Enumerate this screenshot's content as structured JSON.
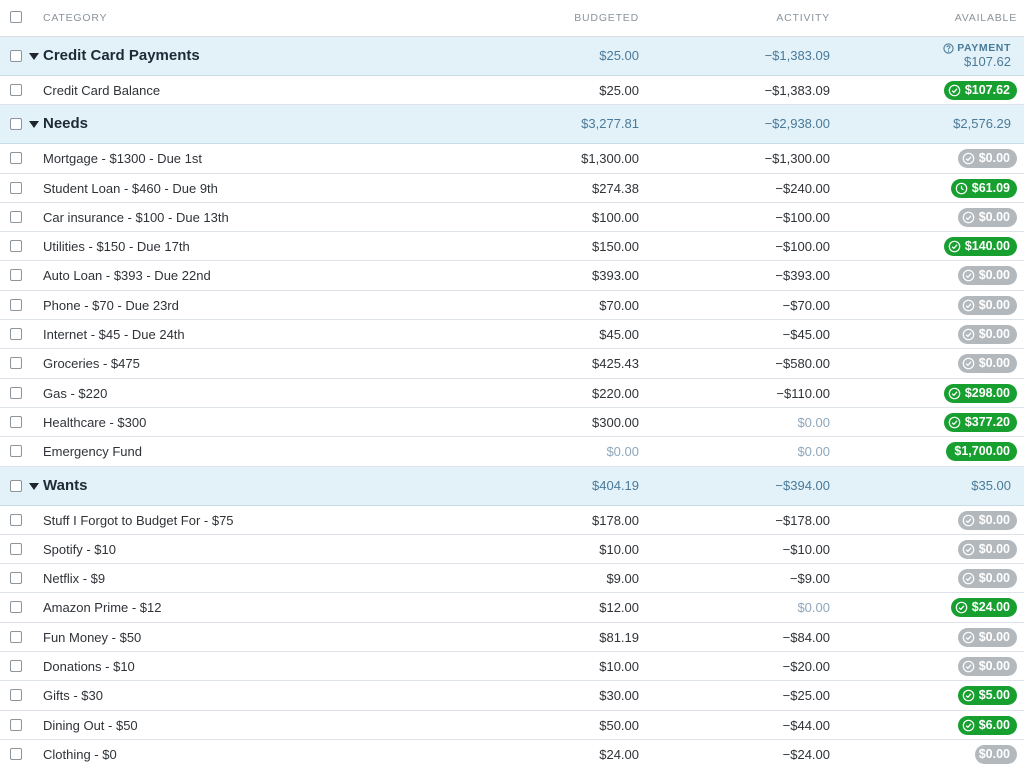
{
  "header": {
    "category": "CATEGORY",
    "budgeted": "BUDGETED",
    "activity": "ACTIVITY",
    "available": "AVAILABLE"
  },
  "colors": {
    "group_bg": "#e3f2f9",
    "available_positive": "#17a02f",
    "available_zero": "#b3b8bd",
    "group_number": "#4a7a99"
  },
  "groups": [
    {
      "name": "Credit Card Payments",
      "budgeted": "$25.00",
      "activity": "−$1,383.09",
      "available_label": "PAYMENT",
      "available": "$107.62",
      "icon": "question-circle-icon",
      "categories": [
        {
          "name": "Credit Card Balance",
          "budgeted": "$25.00",
          "activity": "−$1,383.09",
          "available": "$107.62",
          "status": "funded"
        }
      ]
    },
    {
      "name": "Needs",
      "budgeted": "$3,277.81",
      "activity": "−$2,938.00",
      "available": "$2,576.29",
      "categories": [
        {
          "name": "Mortgage - $1300 - Due 1st",
          "budgeted": "$1,300.00",
          "activity": "−$1,300.00",
          "available": "$0.00",
          "status": "spent"
        },
        {
          "name": "Student Loan - $460 - Due 9th",
          "budgeted": "$274.38",
          "activity": "−$240.00",
          "available": "$61.09",
          "status": "clock"
        },
        {
          "name": "Car insurance - $100 - Due 13th",
          "budgeted": "$100.00",
          "activity": "−$100.00",
          "available": "$0.00",
          "status": "spent"
        },
        {
          "name": "Utilities - $150 - Due 17th",
          "budgeted": "$150.00",
          "activity": "−$100.00",
          "available": "$140.00",
          "status": "funded"
        },
        {
          "name": "Auto Loan - $393 - Due 22nd",
          "budgeted": "$393.00",
          "activity": "−$393.00",
          "available": "$0.00",
          "status": "spent"
        },
        {
          "name": "Phone - $70 - Due 23rd",
          "budgeted": "$70.00",
          "activity": "−$70.00",
          "available": "$0.00",
          "status": "spent"
        },
        {
          "name": "Internet - $45 - Due 24th",
          "budgeted": "$45.00",
          "activity": "−$45.00",
          "available": "$0.00",
          "status": "spent"
        },
        {
          "name": "Groceries - $475",
          "budgeted": "$425.43",
          "activity": "−$580.00",
          "available": "$0.00",
          "status": "spent"
        },
        {
          "name": "Gas - $220",
          "budgeted": "$220.00",
          "activity": "−$110.00",
          "available": "$298.00",
          "status": "funded"
        },
        {
          "name": "Healthcare - $300",
          "budgeted": "$300.00",
          "activity": "$0.00",
          "available": "$377.20",
          "status": "funded"
        },
        {
          "name": "Emergency Fund",
          "budgeted": "$0.00",
          "activity": "$0.00",
          "available": "$1,700.00",
          "status": "plain"
        }
      ]
    },
    {
      "name": "Wants",
      "budgeted": "$404.19",
      "activity": "−$394.00",
      "available": "$35.00",
      "categories": [
        {
          "name": "Stuff I Forgot to Budget For - $75",
          "budgeted": "$178.00",
          "activity": "−$178.00",
          "available": "$0.00",
          "status": "spent"
        },
        {
          "name": "Spotify - $10",
          "budgeted": "$10.00",
          "activity": "−$10.00",
          "available": "$0.00",
          "status": "spent"
        },
        {
          "name": "Netflix - $9",
          "budgeted": "$9.00",
          "activity": "−$9.00",
          "available": "$0.00",
          "status": "spent"
        },
        {
          "name": "Amazon Prime - $12",
          "budgeted": "$12.00",
          "activity": "$0.00",
          "available": "$24.00",
          "status": "funded"
        },
        {
          "name": "Fun Money - $50",
          "budgeted": "$81.19",
          "activity": "−$84.00",
          "available": "$0.00",
          "status": "spent"
        },
        {
          "name": "Donations - $10",
          "budgeted": "$10.00",
          "activity": "−$20.00",
          "available": "$0.00",
          "status": "spent"
        },
        {
          "name": "Gifts - $30",
          "budgeted": "$30.00",
          "activity": "−$25.00",
          "available": "$5.00",
          "status": "funded"
        },
        {
          "name": "Dining Out - $50",
          "budgeted": "$50.00",
          "activity": "−$44.00",
          "available": "$6.00",
          "status": "funded"
        },
        {
          "name": "Clothing - $0",
          "budgeted": "$24.00",
          "activity": "−$24.00",
          "available": "$0.00",
          "status": "plain-zero"
        }
      ]
    }
  ]
}
